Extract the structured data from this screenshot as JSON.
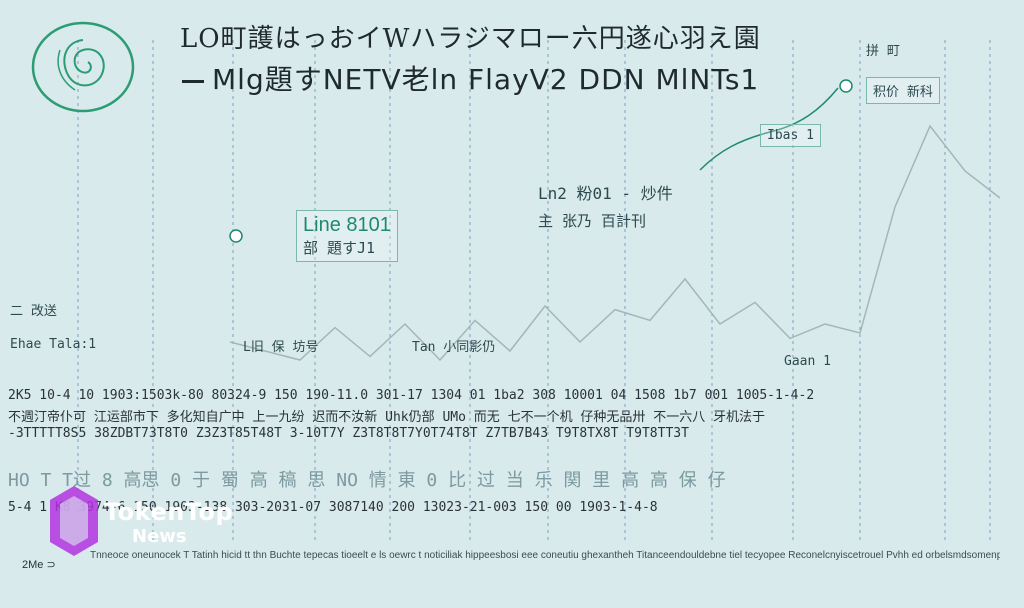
{
  "header": {
    "title": "LO町護はっおイWハラジマロー六円遂心羽え園",
    "subtitle": "Mlg題すNETV老ln FlayV2 DDN MlNTs1"
  },
  "annotations": [
    {
      "text": "Line 8101",
      "sub": "部 題すJ1",
      "style": "boxed"
    },
    {
      "text": "Ln2 粉01 - 炒件",
      "sub": "主 张乃 百計刊",
      "style": "plain"
    },
    {
      "text": "Ibas 1",
      "sub": "",
      "style": "plain"
    },
    {
      "text": "拼 町",
      "sub": "积价 新科",
      "style": "plain"
    },
    {
      "text": "Ehae Tala:1",
      "sub": "二 改送",
      "style": "plain"
    },
    {
      "text": "L旧 保 坊号",
      "sub": "",
      "style": "plain"
    },
    {
      "text": "Tan 小同影仍",
      "sub": "",
      "style": "plain"
    },
    {
      "text": "Gaan 1",
      "sub": "",
      "style": "plain"
    }
  ],
  "rows": {
    "row1": "2K5 10-4 10  1903:1503k-80  80324-9 150 190-11.0  301-17 1304 01  1ba2 308 10001 04  1508 1b7 001  1005-1-4-2",
    "row2": "不週汀帝仆可  江运部市下  多化知自广中  上一九纷  迟而不汝新 Uhk仍部 UMo  而无 七不一个机  仔种无品卅  不一六八  牙机法于",
    "row3": "-3TTTTT8S5  38ZDBT73T8T0  Z3Z3T85T48T  3-10T7Y  Z3T8T8T7Y0T74T8T  Z7TB7B43  T9T8TX8T  T9T8TT3T",
    "row4": "HO T T过 8 高思 0 于 蜀 高 稿 思 NO 情 東 0 比 过 当 乐 関 里 高 高 保 仔",
    "row5": "5-4 1 K8  3974-6 150 1903-138  303-2031-07 3087140  200 13023-21-003 150 00 1903-1-4-8"
  },
  "footer": {
    "text": "Tnneoce oneunocek T Tatinh hicid tt thn Buchte tepecas tioeelt e ls oewrc t noticiliak hippeesbosi eee coneutiu ghexantheh Titanceendouldebne tiel tecyopee Reconelcnyiscetrouel Pvhh ed orbelsmdsomenpeclelt boe Retiten ts eteceseeeticesee epsaseree lovn-st Sun ncupvep seorantcbe",
    "date": "2Me ⊃"
  },
  "watermark": {
    "line1": "TokenTop",
    "line2": "News"
  },
  "chart_data": {
    "type": "line",
    "title": "LO町護はっおイWハラジマロー六円遂心羽え園",
    "subtitle": "Mlg題すNETV老ln FlayV2 DDN MlNTs1",
    "xlabel": "",
    "ylabel": "",
    "grid": "vertical dashed",
    "series": [
      {
        "values": [
          0.6,
          0.55,
          0.5,
          0.68,
          0.52,
          0.7,
          0.5,
          0.72,
          0.55,
          0.8,
          0.6,
          0.78,
          0.72,
          0.95,
          0.7,
          0.82,
          0.62,
          0.7,
          0.65,
          1.35,
          1.8,
          1.55,
          1.4
        ]
      }
    ],
    "colors": {
      "line": "#a3b7b4",
      "accent": "#1d8a6d",
      "grid": "#7fa0c0"
    }
  }
}
